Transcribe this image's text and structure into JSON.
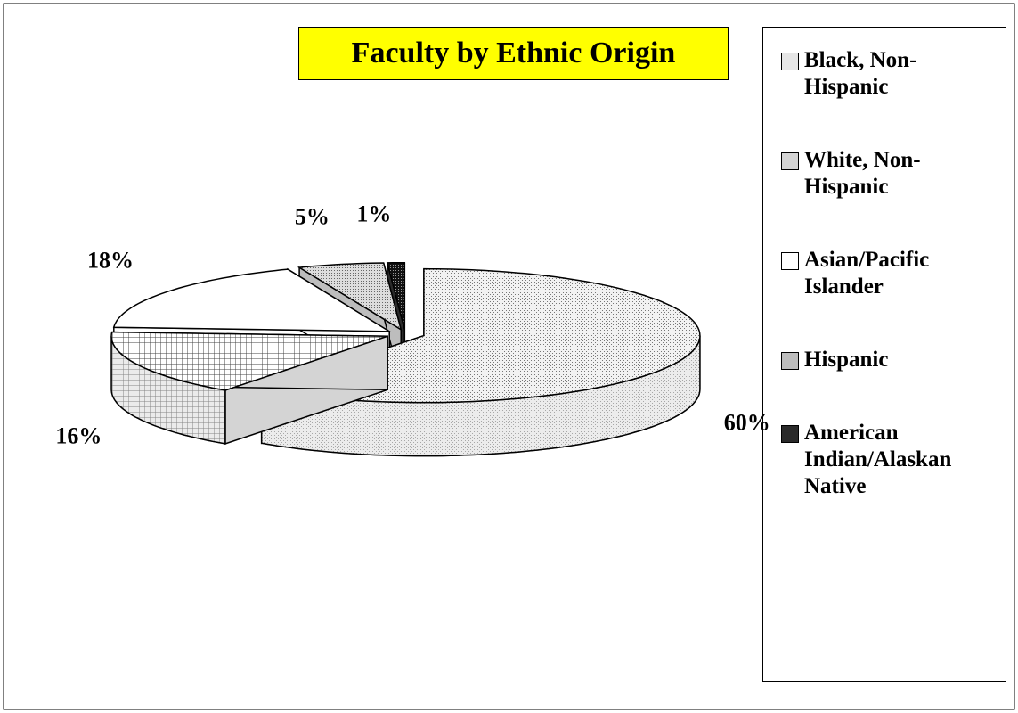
{
  "chart_data": {
    "type": "pie",
    "title": "Faculty by Ethnic Origin",
    "categories": [
      "Black, Non-Hispanic",
      "White, Non-Hispanic",
      "Asian/Pacific Islander",
      "Hispanic",
      "American Indian/Alaskan Native"
    ],
    "values": [
      60,
      16,
      18,
      5,
      1
    ],
    "value_labels": [
      "60%",
      "16%",
      "18%",
      "5%",
      "1%"
    ],
    "colors": [
      "#e6e6e6",
      "#d4d4d4",
      "#ffffff",
      "#bdbdbd",
      "#2a2a2a"
    ],
    "legend": "right",
    "exploded": true,
    "three_d": true
  }
}
